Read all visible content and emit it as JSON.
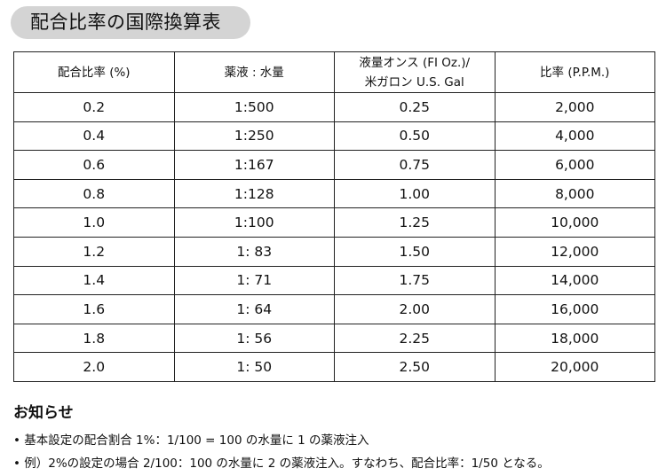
{
  "title": "配合比率の国際換算表",
  "table": {
    "headers": [
      "配合比率 (%)",
      "薬液 : 水量",
      "液量オンス (FI Oz.)/\n米ガロン U.S. Gal",
      "比率 (P.P.M.)"
    ],
    "rows": [
      [
        "0.2",
        "1:500",
        "0.25",
        "2,000"
      ],
      [
        "0.4",
        "1:250",
        "0.50",
        "4,000"
      ],
      [
        "0.6",
        "1:167",
        "0.75",
        "6,000"
      ],
      [
        "0.8",
        "1:128",
        "1.00",
        "8,000"
      ],
      [
        "1.0",
        "1:100",
        "1.25",
        "10,000"
      ],
      [
        "1.2",
        "1: 83",
        "1.50",
        "12,000"
      ],
      [
        "1.4",
        "1: 71",
        "1.75",
        "14,000"
      ],
      [
        "1.6",
        "1: 64",
        "2.00",
        "16,000"
      ],
      [
        "1.8",
        "1: 56",
        "2.25",
        "18,000"
      ],
      [
        "2.0",
        "1: 50",
        "2.50",
        "20,000"
      ]
    ]
  },
  "notice": {
    "heading": "お知らせ",
    "items": [
      "• 基本設定の配合割合 1%：1/100 = 100 の水量に 1 の薬液注入",
      "• 例）2%の設定の場合 2/100：100 の水量に 2 の薬液注入。すなわち、配合比率：1/50 となる。"
    ]
  }
}
